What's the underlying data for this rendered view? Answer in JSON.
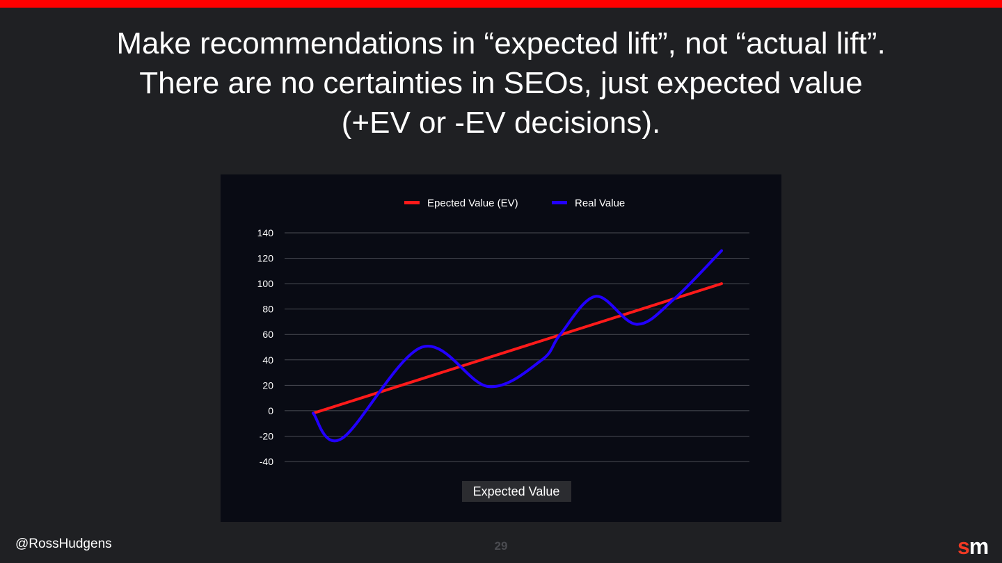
{
  "slide": {
    "title_lines": [
      "Make recommendations in “expected lift”, not “actual lift”.",
      "There are no certainties in SEOs, just expected value",
      "(+EV or -EV decisions)."
    ],
    "handle": "@RossHudgens",
    "page_number": "29",
    "logo": {
      "s": "s",
      "m": "m"
    },
    "colors": {
      "accent": "#ff0000",
      "background": "#1f2023",
      "chart_bg": "#090b14"
    }
  },
  "chart_data": {
    "type": "line",
    "title": "",
    "xlabel": "Expected Value",
    "ylabel": "",
    "ylim": [
      -40,
      140
    ],
    "yticks": [
      "140",
      "120",
      "100",
      "80",
      "60",
      "40",
      "20",
      "0",
      "-20",
      "-40"
    ],
    "ytick_values": [
      140,
      120,
      100,
      80,
      60,
      40,
      20,
      0,
      -20,
      -40
    ],
    "xlim": [
      0,
      100
    ],
    "grid": true,
    "legend_position": "top-center",
    "series": [
      {
        "name": "Epected Value (EV)",
        "color": "#ff1a1a",
        "x": [
          0,
          100
        ],
        "values": [
          -2,
          100
        ]
      },
      {
        "name": "Real Value",
        "color": "#2200ff",
        "x": [
          0,
          7,
          26.6,
          42.9,
          56,
          60.5,
          69.2,
          79.2,
          88.4,
          100
        ],
        "values": [
          -2,
          -22,
          50,
          19,
          40,
          60,
          90,
          68,
          88,
          126
        ]
      }
    ]
  }
}
